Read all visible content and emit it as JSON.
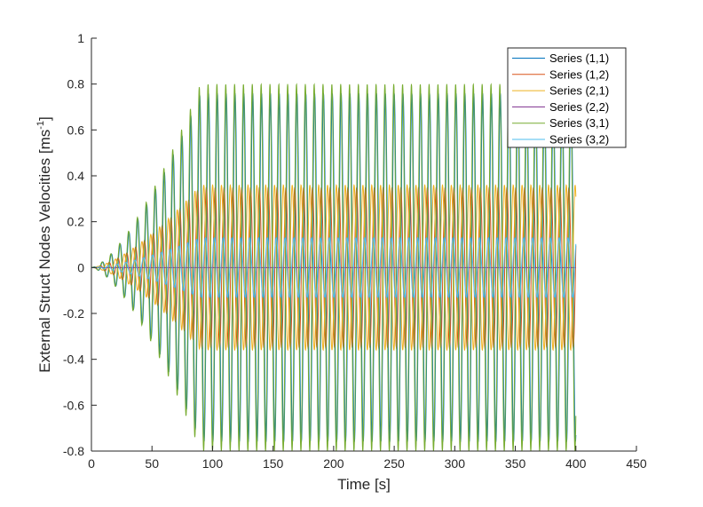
{
  "chart_data": {
    "type": "line",
    "title": "",
    "xlabel": "Time [s]",
    "ylabel_main": "External Struct Nodes Velocities [ms",
    "ylabel_sup": "-1",
    "ylabel_end": "]",
    "xlim": [
      0,
      450
    ],
    "ylim": [
      -0.8,
      1
    ],
    "xticks": [
      0,
      50,
      100,
      150,
      200,
      250,
      300,
      350,
      400,
      450
    ],
    "yticks": [
      -0.8,
      -0.6,
      -0.4,
      -0.2,
      0,
      0.2,
      0.4,
      0.6,
      0.8,
      1
    ],
    "xtick_labels": [
      "0",
      "50",
      "100",
      "150",
      "200",
      "250",
      "300",
      "350",
      "400",
      "450"
    ],
    "ytick_labels": [
      "-0.8",
      "-0.6",
      "-0.4",
      "-0.2",
      "0",
      "0.2",
      "0.4",
      "0.6",
      "0.8",
      "1"
    ],
    "grid": false,
    "legend_location": "top-right",
    "x_start": 0,
    "x_end": 400,
    "period": 7.3,
    "series": [
      {
        "name": "Series (1,1)",
        "color": "#0072BD",
        "steady_amplitude": 0.76,
        "phase": 0.0,
        "ramp_time": 90
      },
      {
        "name": "Series (1,2)",
        "color": "#D95319",
        "steady_amplitude": 0.35,
        "phase": 1.57,
        "ramp_time": 90
      },
      {
        "name": "Series (2,1)",
        "color": "#EDB120",
        "steady_amplitude": 0.36,
        "phase": 3.4,
        "ramp_time": 90
      },
      {
        "name": "Series (2,2)",
        "color": "#7E2F8E",
        "steady_amplitude": 0.0,
        "phase": 0.0,
        "ramp_time": 90
      },
      {
        "name": "Series (3,1)",
        "color": "#77AC30",
        "steady_amplitude": 0.8,
        "phase": 0.35,
        "ramp_time": 90
      },
      {
        "name": "Series (3,2)",
        "color": "#4DBEEE",
        "steady_amplitude": 0.13,
        "phase": 2.2,
        "ramp_time": 90
      }
    ]
  }
}
